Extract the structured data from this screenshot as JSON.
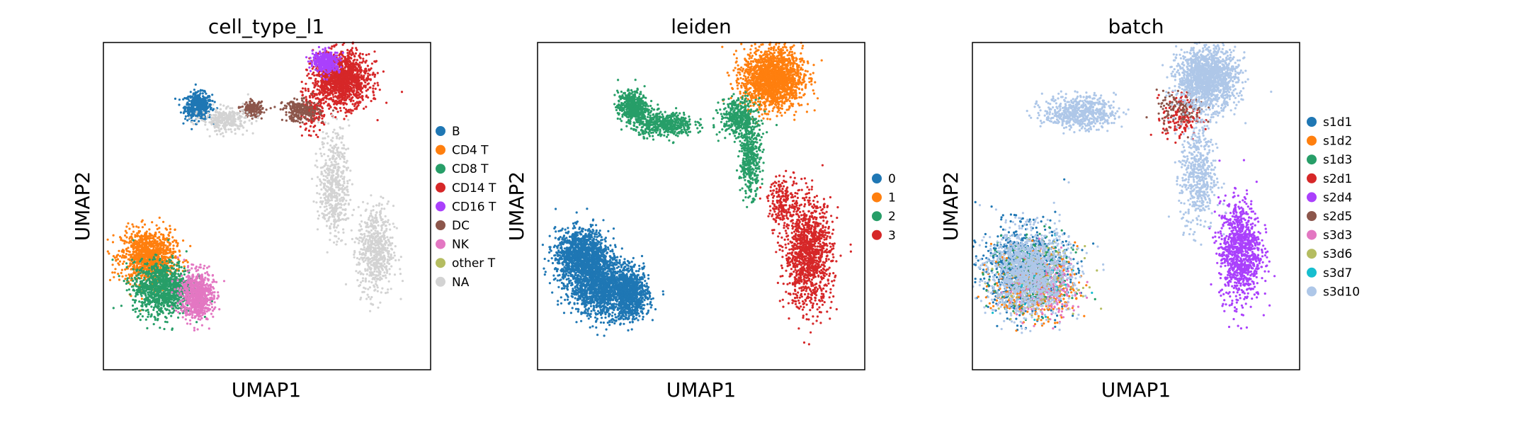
{
  "chart_data": [
    {
      "type": "scatter",
      "title": "cell_type_l1",
      "xlabel": "UMAP1",
      "ylabel": "UMAP2",
      "legend_placement": "right",
      "grid": false,
      "ticks": false,
      "x_range": [
        -6,
        16
      ],
      "y_range": [
        -6,
        16
      ],
      "series": [
        {
          "name": "B",
          "color": "#1f77b4",
          "clusters": [
            {
              "cx": 0.4,
              "cy": 11.7,
              "sx": 0.45,
              "sy": 0.45,
              "n": 500
            }
          ]
        },
        {
          "name": "CD4 T",
          "color": "#ff7f0e",
          "clusters": [
            {
              "cx": -3.0,
              "cy": 1.6,
              "sx": 0.9,
              "sy": 0.9,
              "n": 1100
            }
          ]
        },
        {
          "name": "CD8 T",
          "color": "#279e68",
          "clusters": [
            {
              "cx": -2.0,
              "cy": -0.5,
              "sx": 1.0,
              "sy": 0.9,
              "n": 1100
            }
          ]
        },
        {
          "name": "CD14 T",
          "color": "#d62728",
          "clusters": [
            {
              "cx": 10.0,
              "cy": 13.5,
              "sx": 0.95,
              "sy": 0.9,
              "n": 1400
            },
            {
              "cx": 8.0,
              "cy": 11.2,
              "sx": 0.4,
              "sy": 0.6,
              "n": 150
            }
          ]
        },
        {
          "name": "CD16 T",
          "color": "#aa40fc",
          "clusters": [
            {
              "cx": 9.0,
              "cy": 14.7,
              "sx": 0.45,
              "sy": 0.35,
              "n": 350
            }
          ]
        },
        {
          "name": "DC",
          "color": "#8c564b",
          "clusters": [
            {
              "cx": 4.0,
              "cy": 11.5,
              "sx": 0.35,
              "sy": 0.25,
              "n": 200
            },
            {
              "cx": 7.3,
              "cy": 11.4,
              "sx": 0.6,
              "sy": 0.35,
              "n": 250
            }
          ]
        },
        {
          "name": "NK",
          "color": "#e377c2",
          "clusters": [
            {
              "cx": 0.3,
              "cy": -1.0,
              "sx": 0.55,
              "sy": 0.8,
              "n": 700
            }
          ]
        },
        {
          "name": "other T",
          "color": "#b5bd61",
          "clusters": []
        },
        {
          "name": "NA",
          "color": "#d3d3d3",
          "clusters": [
            {
              "cx": 2.2,
              "cy": 10.8,
              "sx": 0.8,
              "sy": 0.4,
              "n": 300
            },
            {
              "cx": 9.5,
              "cy": 6.5,
              "sx": 0.5,
              "sy": 1.8,
              "n": 500
            },
            {
              "cx": 12.3,
              "cy": 2.0,
              "sx": 0.6,
              "sy": 1.5,
              "n": 600
            }
          ]
        }
      ]
    },
    {
      "type": "scatter",
      "title": "leiden",
      "xlabel": "UMAP1",
      "ylabel": "UMAP2",
      "legend_placement": "right",
      "grid": false,
      "ticks": false,
      "x_range": [
        -6,
        16
      ],
      "y_range": [
        -6,
        16
      ],
      "series": [
        {
          "name": "0",
          "color": "#1f77b4",
          "clusters": [
            {
              "cx": -3.0,
              "cy": 1.6,
              "sx": 0.9,
              "sy": 0.9,
              "n": 1400
            },
            {
              "cx": -1.6,
              "cy": -0.5,
              "sx": 1.1,
              "sy": 0.95,
              "n": 1400
            },
            {
              "cx": 0.3,
              "cy": -1.0,
              "sx": 0.6,
              "sy": 0.8,
              "n": 700
            }
          ]
        },
        {
          "name": "1",
          "color": "#ff7f0e",
          "clusters": [
            {
              "cx": 9.8,
              "cy": 13.6,
              "sx": 1.0,
              "sy": 1.0,
              "n": 1800
            }
          ]
        },
        {
          "name": "2",
          "color": "#279e68",
          "clusters": [
            {
              "cx": 0.4,
              "cy": 11.7,
              "sx": 0.5,
              "sy": 0.5,
              "n": 500
            },
            {
              "cx": 2.5,
              "cy": 10.5,
              "sx": 1.0,
              "sy": 0.4,
              "n": 500
            },
            {
              "cx": 7.5,
              "cy": 11.0,
              "sx": 0.6,
              "sy": 0.6,
              "n": 400
            },
            {
              "cx": 8.3,
              "cy": 8.2,
              "sx": 0.35,
              "sy": 1.2,
              "n": 400
            }
          ]
        },
        {
          "name": "3",
          "color": "#d62728",
          "clusters": [
            {
              "cx": 12.2,
              "cy": 1.8,
              "sx": 0.8,
              "sy": 1.8,
              "n": 1200
            },
            {
              "cx": 10.5,
              "cy": 5.3,
              "sx": 0.5,
              "sy": 0.8,
              "n": 200
            }
          ]
        }
      ]
    },
    {
      "type": "scatter",
      "title": "batch",
      "xlabel": "UMAP1",
      "ylabel": "UMAP2",
      "legend_placement": "right",
      "grid": false,
      "ticks": false,
      "x_range": [
        -6,
        16
      ],
      "y_range": [
        -6,
        16
      ],
      "series": [
        {
          "name": "s1d1",
          "color": "#1f77b4",
          "clusters": [
            {
              "cx": -2.5,
              "cy": 0.8,
              "sx": 1.4,
              "sy": 1.4,
              "n": 900
            }
          ]
        },
        {
          "name": "s1d2",
          "color": "#ff7f0e",
          "clusters": [
            {
              "cx": -1.8,
              "cy": -0.3,
              "sx": 1.4,
              "sy": 1.2,
              "n": 400
            }
          ]
        },
        {
          "name": "s1d3",
          "color": "#279e68",
          "clusters": [
            {
              "cx": -2.0,
              "cy": 0.5,
              "sx": 1.4,
              "sy": 1.3,
              "n": 250
            }
          ]
        },
        {
          "name": "s2d1",
          "color": "#d62728",
          "clusters": [
            {
              "cx": 8.0,
              "cy": 11.0,
              "sx": 0.6,
              "sy": 0.8,
              "n": 150
            }
          ]
        },
        {
          "name": "s2d4",
          "color": "#aa40fc",
          "clusters": [
            {
              "cx": 12.0,
              "cy": 2.0,
              "sx": 0.7,
              "sy": 1.7,
              "n": 1000
            }
          ]
        },
        {
          "name": "s2d5",
          "color": "#8c564b",
          "clusters": [
            {
              "cx": 8.0,
              "cy": 11.5,
              "sx": 0.8,
              "sy": 0.6,
              "n": 120
            }
          ]
        },
        {
          "name": "s3d3",
          "color": "#e377c2",
          "clusters": [
            {
              "cx": -1.0,
              "cy": -0.5,
              "sx": 1.2,
              "sy": 1.0,
              "n": 250
            }
          ]
        },
        {
          "name": "s3d6",
          "color": "#b5bd61",
          "clusters": [
            {
              "cx": -1.5,
              "cy": 0.0,
              "sx": 1.3,
              "sy": 1.1,
              "n": 120
            }
          ]
        },
        {
          "name": "s3d7",
          "color": "#17becf",
          "clusters": [
            {
              "cx": -1.5,
              "cy": 0.0,
              "sx": 1.3,
              "sy": 1.1,
              "n": 40
            }
          ]
        },
        {
          "name": "s3d10",
          "color": "#aec7e8",
          "clusters": [
            {
              "cx": 9.8,
              "cy": 13.6,
              "sx": 1.0,
              "sy": 1.0,
              "n": 1500
            },
            {
              "cx": -2.2,
              "cy": 0.6,
              "sx": 1.4,
              "sy": 1.4,
              "n": 1300
            },
            {
              "cx": 1.2,
              "cy": 11.3,
              "sx": 1.2,
              "sy": 0.55,
              "n": 600
            },
            {
              "cx": 9.2,
              "cy": 7.0,
              "sx": 0.6,
              "sy": 1.8,
              "n": 500
            }
          ]
        }
      ]
    }
  ]
}
